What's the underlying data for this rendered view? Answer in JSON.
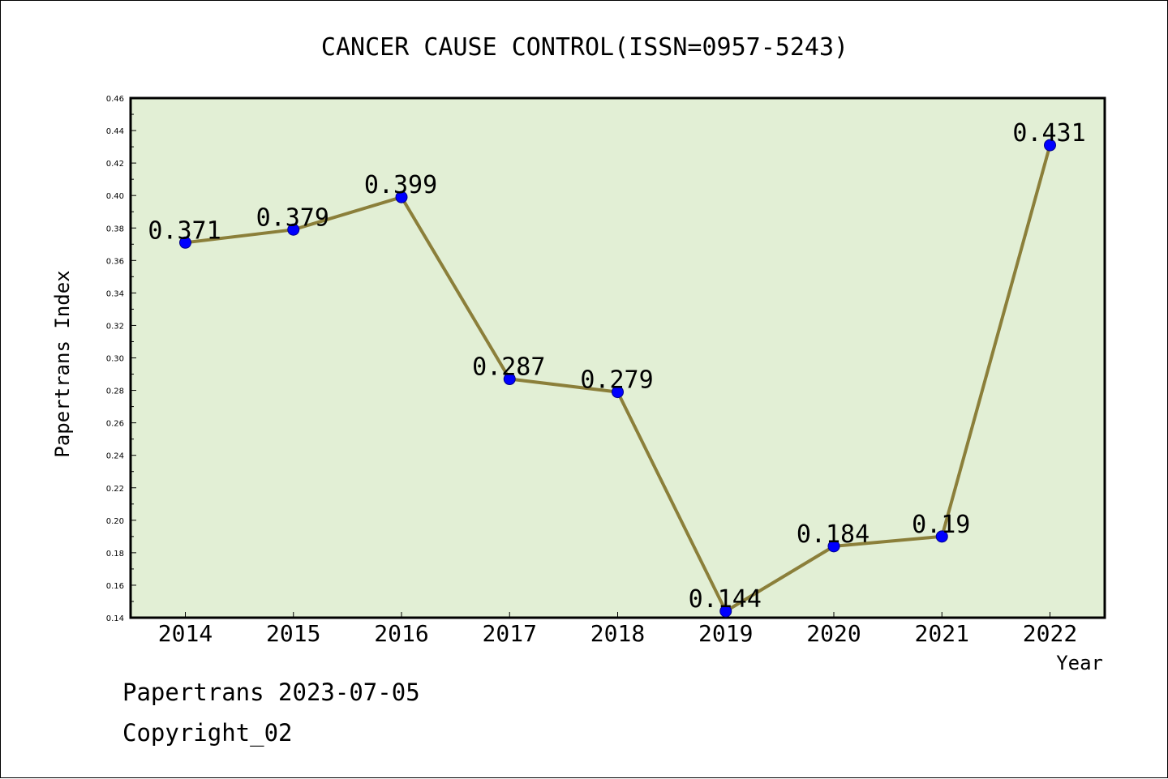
{
  "chart_data": {
    "type": "line",
    "title": "CANCER CAUSE CONTROL(ISSN=0957-5243)",
    "xlabel": "Year",
    "ylabel": "Papertrans Index",
    "categories": [
      "2014",
      "2015",
      "2016",
      "2017",
      "2018",
      "2019",
      "2020",
      "2021",
      "2022"
    ],
    "series": [
      {
        "values": [
          0.371,
          0.379,
          0.399,
          0.287,
          0.279,
          0.144,
          0.184,
          0.19,
          0.431
        ],
        "labels": [
          "0.371",
          "0.379",
          "0.399",
          "0.287",
          "0.279",
          "0.144",
          "0.184",
          "0.19",
          "0.431"
        ]
      }
    ],
    "ylim": [
      0.14,
      0.46
    ],
    "yticks": [
      "0.14",
      "0.16",
      "0.18",
      "0.20",
      "0.22",
      "0.24",
      "0.26",
      "0.28",
      "0.30",
      "0.32",
      "0.34",
      "0.36",
      "0.38",
      "0.40",
      "0.42",
      "0.44",
      "0.46"
    ],
    "grid": false,
    "legend": "none",
    "colors": {
      "plot_background": "#e2efd5",
      "line": "#8b7f3a",
      "marker_fill": "#0000ff",
      "marker_stroke": "#00008b"
    }
  },
  "footer": {
    "line1": "Papertrans 2023-07-05",
    "line2": "Copyright_02"
  }
}
